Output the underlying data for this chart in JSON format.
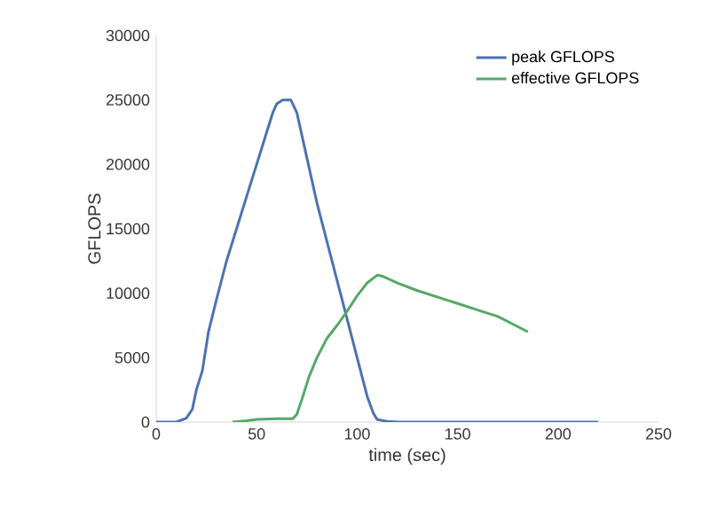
{
  "chart_data": {
    "type": "line",
    "xlabel": "time (sec)",
    "ylabel": "GFLOPS",
    "xlim": [
      0,
      250
    ],
    "ylim": [
      0,
      30000
    ],
    "xticks": [
      0,
      50,
      100,
      150,
      200,
      250
    ],
    "yticks": [
      0,
      5000,
      10000,
      15000,
      20000,
      25000,
      30000
    ],
    "grid": false,
    "legend": "top right",
    "series": [
      {
        "name": "peak GFLOPS",
        "color": "#4c72b0",
        "x": [
          0,
          10,
          15,
          18,
          20,
          23,
          26,
          30,
          35,
          40,
          45,
          50,
          55,
          58,
          60,
          63,
          67,
          70,
          75,
          80,
          85,
          90,
          95,
          100,
          105,
          108,
          110,
          115,
          120,
          150,
          200,
          220
        ],
        "values": [
          0,
          0,
          300,
          1000,
          2500,
          4000,
          7000,
          9500,
          12500,
          15000,
          17500,
          20000,
          22500,
          24000,
          24700,
          25000,
          25000,
          24000,
          20500,
          17000,
          14000,
          11000,
          8000,
          5000,
          2000,
          700,
          200,
          50,
          0,
          0,
          0,
          0
        ]
      },
      {
        "name": "effective GFLOPS",
        "color": "#55a868",
        "x": [
          38,
          45,
          50,
          60,
          68,
          70,
          73,
          76,
          80,
          85,
          90,
          95,
          100,
          105,
          110,
          113,
          120,
          130,
          140,
          150,
          160,
          170,
          185
        ],
        "values": [
          0,
          100,
          200,
          250,
          250,
          600,
          2000,
          3500,
          5000,
          6500,
          7500,
          8600,
          9800,
          10800,
          11400,
          11300,
          10800,
          10200,
          9700,
          9200,
          8700,
          8200,
          7000
        ]
      }
    ]
  }
}
